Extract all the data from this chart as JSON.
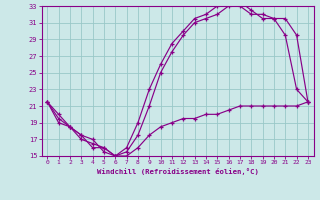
{
  "xlabel": "Windchill (Refroidissement éolien,°C)",
  "bg_color": "#cce8e8",
  "grid_color": "#99c8c8",
  "line_color": "#880088",
  "xlim": [
    -0.5,
    23.5
  ],
  "ylim": [
    15,
    33
  ],
  "xticks": [
    0,
    1,
    2,
    3,
    4,
    5,
    6,
    7,
    8,
    9,
    10,
    11,
    12,
    13,
    14,
    15,
    16,
    17,
    18,
    19,
    20,
    21,
    22,
    23
  ],
  "yticks": [
    15,
    17,
    19,
    21,
    23,
    25,
    27,
    29,
    31,
    33
  ],
  "line1_x": [
    0,
    1,
    2,
    3,
    4,
    5,
    6,
    7,
    8,
    9,
    10,
    11,
    12,
    13,
    14,
    15,
    16,
    17,
    18,
    19,
    20,
    21,
    22,
    23
  ],
  "line1_y": [
    21.5,
    20.0,
    18.5,
    17.5,
    17.0,
    15.5,
    15.0,
    16.0,
    19.0,
    23.0,
    26.0,
    28.5,
    30.0,
    31.5,
    32.0,
    33.0,
    33.5,
    33.5,
    32.5,
    31.5,
    31.5,
    29.5,
    23.0,
    21.5
  ],
  "line2_x": [
    0,
    1,
    2,
    3,
    4,
    5,
    6,
    7,
    8,
    9,
    10,
    11,
    12,
    13,
    14,
    15,
    16,
    17,
    18,
    19,
    20,
    21,
    22,
    23
  ],
  "line2_y": [
    21.5,
    19.0,
    18.5,
    17.0,
    16.5,
    16.0,
    15.0,
    15.5,
    17.5,
    21.0,
    25.0,
    27.5,
    29.5,
    31.0,
    31.5,
    32.0,
    33.0,
    33.0,
    32.0,
    32.0,
    31.5,
    31.5,
    29.5,
    21.5
  ],
  "line3_x": [
    0,
    1,
    2,
    3,
    4,
    5,
    6,
    7,
    8,
    9,
    10,
    11,
    12,
    13,
    14,
    15,
    16,
    17,
    18,
    19,
    20,
    21,
    22,
    23
  ],
  "line3_y": [
    21.5,
    19.5,
    18.5,
    17.5,
    16.0,
    16.0,
    15.0,
    15.0,
    16.0,
    17.5,
    18.5,
    19.0,
    19.5,
    19.5,
    20.0,
    20.0,
    20.5,
    21.0,
    21.0,
    21.0,
    21.0,
    21.0,
    21.0,
    21.5
  ]
}
